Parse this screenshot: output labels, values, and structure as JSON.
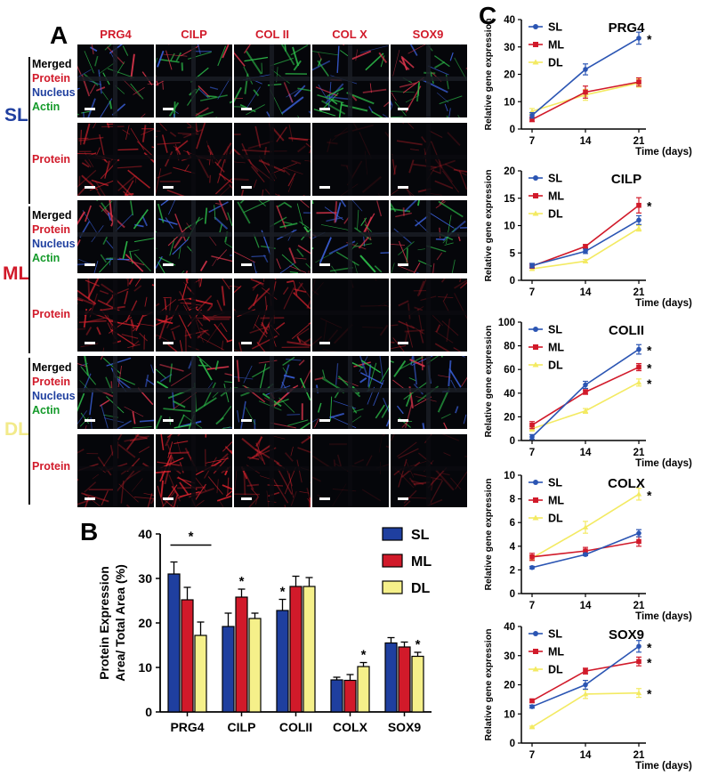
{
  "panel_a": {
    "letter": "A",
    "columns": [
      "PRG4",
      "CILP",
      "COL II",
      "COL X",
      "SOX9"
    ],
    "groups": [
      {
        "name": "SL",
        "color": "#1f3f9f"
      },
      {
        "name": "ML",
        "color": "#d11a2a"
      },
      {
        "name": "DL",
        "color": "#f2ea8a"
      }
    ],
    "legend_lines": [
      {
        "text": "Merged",
        "color": "#000000"
      },
      {
        "text": "Protein",
        "color": "#d11a2a"
      },
      {
        "text": "Nucleus",
        "color": "#1f3f9f"
      },
      {
        "text": "Actin",
        "color": "#149a2a"
      }
    ],
    "protein_label": "Protein"
  },
  "panel_b": {
    "letter": "B"
  },
  "panel_c": {
    "letter": "C"
  },
  "colors": {
    "SL": "#1f3f9f",
    "ML": "#d11a2a",
    "DL": "#f5f08a"
  },
  "chart_data": [
    {
      "id": "B",
      "type": "bar",
      "ylabel_lines": [
        "Protein Expression",
        "Area/ Total Area (%)"
      ],
      "ylim": [
        0,
        40
      ],
      "yticks": [
        0,
        10,
        20,
        30,
        40
      ],
      "categories": [
        "PRG4",
        "CILP",
        "COLII",
        "COLX",
        "SOX9"
      ],
      "series": [
        {
          "name": "SL",
          "values": [
            31,
            19.2,
            22.8,
            7.2,
            15.5
          ],
          "errors": [
            2.7,
            3.0,
            2.5,
            0.6,
            1.2
          ]
        },
        {
          "name": "ML",
          "values": [
            25.2,
            25.8,
            28.2,
            7.1,
            14.6
          ],
          "errors": [
            2.8,
            1.8,
            2.3,
            1.3,
            1.1
          ]
        },
        {
          "name": "DL",
          "values": [
            17.2,
            21,
            28.2,
            10.2,
            12.5
          ],
          "errors": [
            3.0,
            1.2,
            2.0,
            0.9,
            0.9
          ]
        }
      ],
      "annotations": [
        {
          "category": 0,
          "series": "bracket",
          "text": "*"
        },
        {
          "category": 1,
          "series": "ML",
          "text": "*"
        },
        {
          "category": 2,
          "series": "SL",
          "text": "*"
        },
        {
          "category": 3,
          "series": "DL",
          "text": "*"
        },
        {
          "category": 4,
          "series": "DL",
          "text": "*"
        }
      ],
      "legend": [
        "SL",
        "ML",
        "DL"
      ],
      "legend_position": "top-right"
    },
    {
      "id": "C1",
      "type": "line",
      "title": "PRG4",
      "ylabel": "Relative gene expression",
      "xlabel": "Time (days)",
      "x": [
        7,
        14,
        21
      ],
      "ylim": [
        0,
        40
      ],
      "yticks": [
        0,
        10,
        20,
        30,
        40
      ],
      "series": [
        {
          "name": "SL",
          "values": [
            5,
            21.8,
            33.2
          ],
          "errors": [
            1.0,
            2.0,
            2.2
          ],
          "star": true
        },
        {
          "name": "ML",
          "values": [
            3.5,
            13.5,
            17.2
          ],
          "errors": [
            0.8,
            2.2,
            1.5
          ],
          "star": false
        },
        {
          "name": "DL",
          "values": [
            6.5,
            12.5,
            16.8
          ],
          "errors": [
            1.0,
            2.0,
            1.5
          ],
          "star": false
        }
      ]
    },
    {
      "id": "C2",
      "type": "line",
      "title": "CILP",
      "ylabel": "Relative gene expression",
      "xlabel": "Time (days)",
      "x": [
        7,
        14,
        21
      ],
      "ylim": [
        0,
        20
      ],
      "yticks": [
        0,
        5,
        10,
        15,
        20
      ],
      "series": [
        {
          "name": "SL",
          "values": [
            2.7,
            5.3,
            11
          ],
          "errors": [
            0.4,
            0.4,
            0.8
          ],
          "star": false
        },
        {
          "name": "ML",
          "values": [
            2.6,
            6.2,
            13.7
          ],
          "errors": [
            0.4,
            0.3,
            1.4
          ],
          "star": true
        },
        {
          "name": "DL",
          "values": [
            2.1,
            3.5,
            9.5
          ],
          "errors": [
            0.3,
            0.3,
            0.5
          ],
          "star": false
        }
      ]
    },
    {
      "id": "C3",
      "type": "line",
      "title": "COLII",
      "ylabel": "Relative gene expression",
      "xlabel": "Time (days)",
      "x": [
        7,
        14,
        21
      ],
      "ylim": [
        0,
        100
      ],
      "yticks": [
        0,
        20,
        40,
        60,
        80,
        100
      ],
      "series": [
        {
          "name": "SL",
          "values": [
            3,
            47,
            77
          ],
          "errors": [
            2,
            3,
            4
          ],
          "star": true
        },
        {
          "name": "ML",
          "values": [
            13,
            41,
            62
          ],
          "errors": [
            3,
            2,
            3
          ],
          "star": true
        },
        {
          "name": "DL",
          "values": [
            10,
            25,
            49
          ],
          "errors": [
            2,
            2,
            3
          ],
          "star": true
        }
      ]
    },
    {
      "id": "C4",
      "type": "line",
      "title": "COLX",
      "ylabel": "Relative gene expression",
      "xlabel": "Time (days)",
      "x": [
        7,
        14,
        21
      ],
      "ylim": [
        0,
        10
      ],
      "yticks": [
        0,
        2,
        4,
        6,
        8,
        10
      ],
      "series": [
        {
          "name": "SL",
          "values": [
            2.2,
            3.3,
            5.1
          ],
          "errors": [
            0.1,
            0.1,
            0.3
          ],
          "star": false
        },
        {
          "name": "ML",
          "values": [
            3.1,
            3.6,
            4.4
          ],
          "errors": [
            0.3,
            0.3,
            0.4
          ],
          "star": false
        },
        {
          "name": "DL",
          "values": [
            3.0,
            5.6,
            8.4
          ],
          "errors": [
            0.2,
            0.5,
            0.5
          ],
          "star": true
        }
      ]
    },
    {
      "id": "C5",
      "type": "line",
      "title": "SOX9",
      "ylabel": "Relative gene expression",
      "xlabel": "Time (days)",
      "x": [
        7,
        14,
        21
      ],
      "ylim": [
        0,
        40
      ],
      "yticks": [
        0,
        10,
        20,
        30,
        40
      ],
      "series": [
        {
          "name": "SL",
          "values": [
            12.5,
            20,
            33.2
          ],
          "errors": [
            0.5,
            1.5,
            2.0
          ],
          "star": true
        },
        {
          "name": "ML",
          "values": [
            14.5,
            24.7,
            28
          ],
          "errors": [
            0.5,
            1.0,
            1.5
          ],
          "star": true
        },
        {
          "name": "DL",
          "values": [
            5.5,
            16.8,
            17.2
          ],
          "errors": [
            0.3,
            1.5,
            1.5
          ],
          "star": true
        }
      ]
    }
  ]
}
